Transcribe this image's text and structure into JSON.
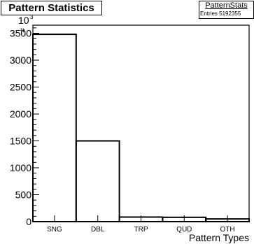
{
  "title": "Pattern Statistics",
  "stats": {
    "name": "PatternStats",
    "entries_label": "Entries",
    "entries": "5192355"
  },
  "chart_data": {
    "type": "bar",
    "style": "step-histogram",
    "title": "Pattern Statistics",
    "xlabel": "Pattern Types",
    "ylabel": "#",
    "y_exponent_label": "10",
    "y_exponent_power": "3",
    "categories": [
      "SNG",
      "DBL",
      "TRP",
      "QUD",
      "OTH"
    ],
    "values": [
      3480,
      1500,
      85,
      80,
      50
    ],
    "ylim": [
      0,
      3650
    ],
    "yticks": [
      0,
      500,
      1000,
      1500,
      2000,
      2500,
      3000,
      3500
    ],
    "ytick_labels": [
      "0",
      "500",
      "1000",
      "1500",
      "2000",
      "2500",
      "3000",
      "3500"
    ],
    "line_color": "#000000",
    "grid": false
  }
}
